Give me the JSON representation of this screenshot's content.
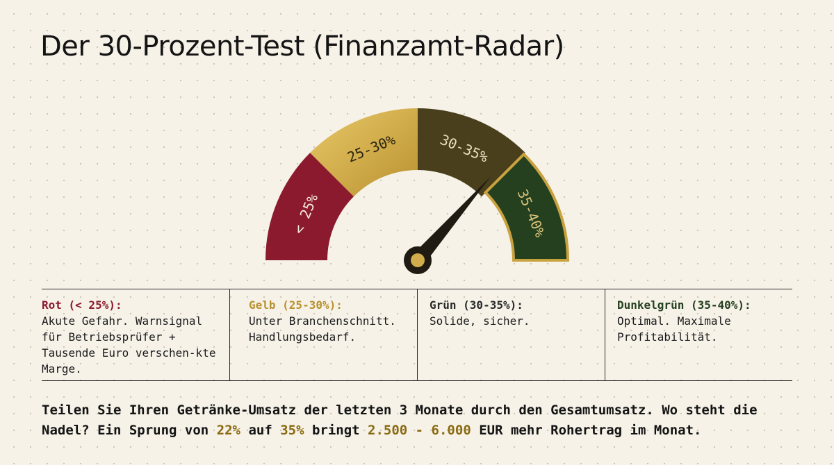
{
  "title": "Der 30-Prozent-Test (Finanzamt-Radar)",
  "colors": {
    "red": "#8b1a2e",
    "yellow": "#c9a240",
    "olive": "#4a3f1c",
    "darkgreen": "#24401f",
    "gold_border": "#c9a240"
  },
  "gauge": {
    "segments": [
      {
        "label": "< 25%"
      },
      {
        "label": "25-30%"
      },
      {
        "label": "30-35%"
      },
      {
        "label": "35-40%"
      }
    ],
    "needle_value_percent": 35
  },
  "legend": [
    {
      "heading": "Rot (< 25%):",
      "text": "Akute Gefahr. Warnsignal für Betriebsprüfer + Tausende Euro verschen-kte Marge."
    },
    {
      "heading": "Gelb (25-30%):",
      "text": "Unter Branchenschnitt. Handlungsbedarf."
    },
    {
      "heading": "Grün (30-35%):",
      "text": "Solide, sicher."
    },
    {
      "heading": "Dunkelgrün (35-40%):",
      "text": "Optimal. Maximale Profitabilität."
    }
  ],
  "footer": {
    "part1": "Teilen Sie Ihren Getränke-Umsatz der letzten 3 Monate durch den Gesamtumsatz. Wo steht die Nadel? Ein Sprung von ",
    "hl1": "22%",
    "part2": " auf ",
    "hl2": "35%",
    "part3": " bringt ",
    "hl3": "2.500 - 6.000",
    "part4": " EUR mehr Rohertrag im Monat."
  }
}
